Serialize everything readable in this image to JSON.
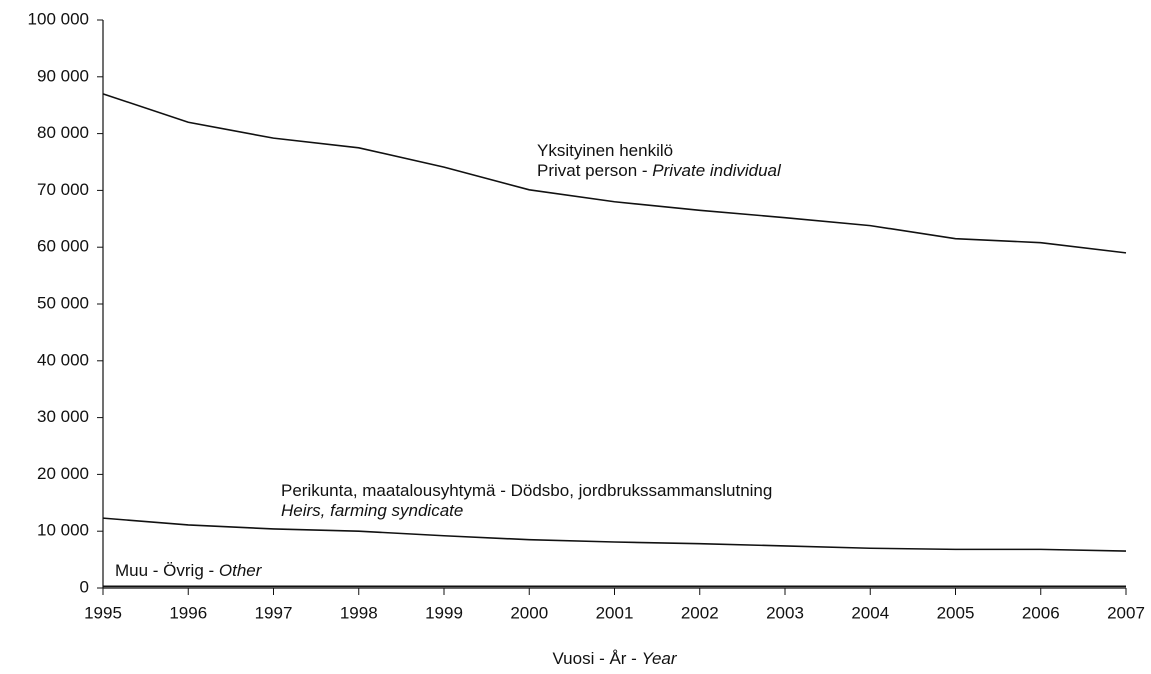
{
  "chart_data": {
    "type": "line",
    "x": [
      1995,
      1996,
      1997,
      1998,
      1999,
      2000,
      2001,
      2002,
      2003,
      2004,
      2005,
      2006,
      2007
    ],
    "xlim": [
      1995,
      2007
    ],
    "xticks": [
      1995,
      1996,
      1997,
      1998,
      1999,
      2000,
      2001,
      2002,
      2003,
      2004,
      2005,
      2006,
      2007
    ],
    "ylim": [
      0,
      100000
    ],
    "yticks": [
      0,
      {
        "value": 10000,
        "label": "10 000"
      },
      {
        "value": 20000,
        "label": "20 000"
      },
      {
        "value": 30000,
        "label": "30 000"
      },
      {
        "value": 40000,
        "label": "40 000"
      },
      {
        "value": 50000,
        "label": "50 000"
      },
      {
        "value": 60000,
        "label": "60 000"
      },
      {
        "value": 70000,
        "label": "70 000"
      },
      {
        "value": 80000,
        "label": "80 000"
      },
      {
        "value": 90000,
        "label": "90 000"
      },
      {
        "value": 100000,
        "label": "100 000"
      }
    ],
    "xlabel": [
      {
        "text": "Vuosi - År - "
      },
      {
        "text": "Year",
        "italic": true
      }
    ],
    "series": [
      {
        "color": "#111111",
        "label": [
          [
            {
              "text": "Yksityinen henkilö"
            }
          ],
          [
            {
              "text": "Privat person - "
            },
            {
              "text": "Private individual",
              "italic": true
            }
          ]
        ],
        "values": [
          87000,
          82000,
          79200,
          77500,
          74100,
          70100,
          68000,
          66500,
          65200,
          63800,
          61500,
          60800,
          59000
        ]
      },
      {
        "color": "#111111",
        "label": [
          [
            {
              "text": "Perikunta, maatalousyhtymä - Dödsbo, jordbrukssammanslutning"
            }
          ],
          [
            {
              "text": "Heirs, farming syndicate",
              "italic": true
            }
          ]
        ],
        "values": [
          12300,
          11100,
          10400,
          10000,
          9200,
          8500,
          8100,
          7800,
          7400,
          7000,
          6800,
          6800,
          6500
        ]
      },
      {
        "color": "#111111",
        "label": [
          [
            {
              "text": "Muu - Övrig - "
            },
            {
              "text": "Other",
              "italic": true
            }
          ]
        ],
        "values": [
          300,
          300,
          300,
          300,
          300,
          300,
          300,
          300,
          300,
          300,
          300,
          300,
          300
        ]
      }
    ]
  }
}
